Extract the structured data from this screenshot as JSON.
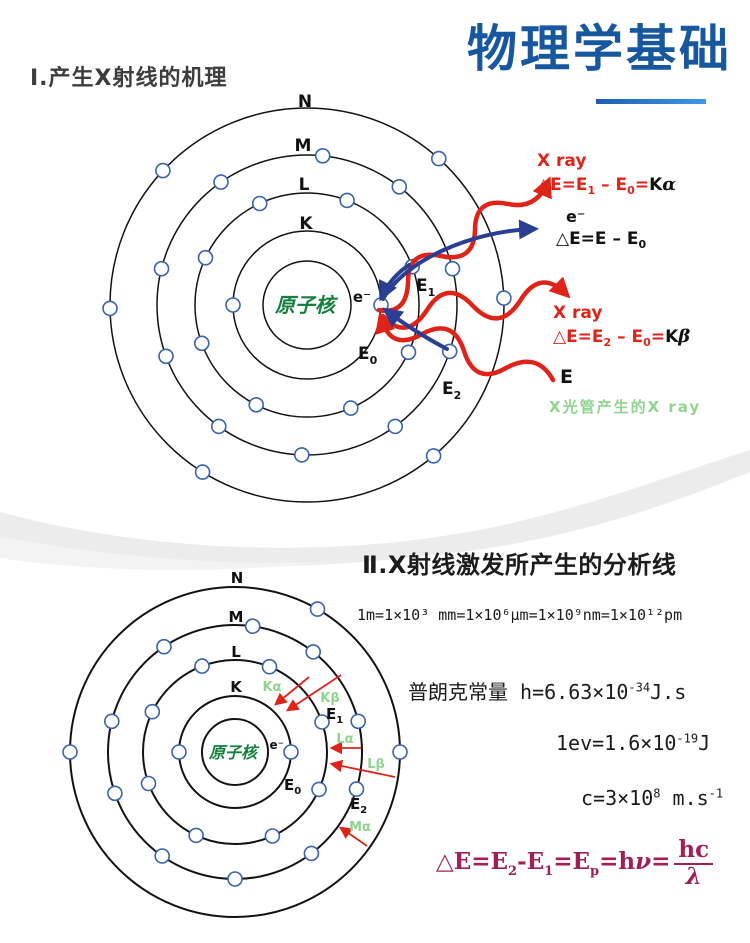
{
  "header": {
    "title": "物理学基础"
  },
  "colors": {
    "title_blue": "#17579f",
    "underline_blue": "#3f97e8",
    "xray_red": "#e02318",
    "electron_arrow_navy": "#2a3f93",
    "electron_ring_blue": "#3a62ad",
    "nucleus_green": "#15803d",
    "light_green": "#8fd48f",
    "formula_magenta": "#a11e56",
    "swoosh_gray": "#ececec"
  },
  "section1": {
    "heading": "Ⅰ.产生X射线的机理",
    "diagram": {
      "shells": [
        "N",
        "M",
        "L",
        "K"
      ],
      "nucleus": "原子核",
      "electron": "e⁻",
      "energy": {
        "e0": {
          "t": "E",
          "s": "0"
        },
        "e1": {
          "t": "E",
          "s": "1"
        },
        "e2": {
          "t": "E",
          "s": "2"
        }
      }
    },
    "annotations": {
      "a1": {
        "label": "X ray",
        "p1": "△E=E",
        "s1": "1",
        "p2": " – E",
        "s2": "0",
        "p3": "=",
        "k": "K",
        "g": "α"
      },
      "ae": {
        "label": "e⁻",
        "p1": "△E=E – E",
        "s1": "0"
      },
      "a2": {
        "label": "X ray",
        "p1": "△E=E",
        "s1": "2",
        "p2": " – E",
        "s2": "0",
        "p3": "=",
        "k": "K",
        "g": "β"
      },
      "incoming": {
        "label": "E",
        "caption": "X光管产生的X ray"
      }
    }
  },
  "section2": {
    "heading": "Ⅱ.X射线激发所产生的分析线",
    "diagram": {
      "shells": [
        "N",
        "M",
        "L",
        "K"
      ],
      "nucleus": "原子核",
      "electron": "e⁻",
      "energy": {
        "e0": {
          "t": "E",
          "s": "0"
        },
        "e1": {
          "t": "E",
          "s": "1"
        },
        "e2": {
          "t": "E",
          "s": "2"
        }
      },
      "transitions": [
        "Kα",
        "Kβ",
        "Lα",
        "Lβ",
        "Mα"
      ]
    },
    "facts": {
      "units": "1m=1×10³ mm=1×10⁶μm=1×10⁹nm=1×10¹²pm",
      "planck": {
        "pre": "普朗克常量 h=6.63×10",
        "sup": "-34",
        "post": "J.s"
      },
      "ev": {
        "pre": "1ev=1.6×10",
        "sup": "-19",
        "post": "J"
      },
      "c": {
        "pre": "c=3×10",
        "sup": "8",
        "mid": " m.s",
        "sup2": "-1"
      }
    },
    "formula": {
      "f1": "△E=E",
      "f1s": "2",
      "f2": "-E",
      "f2s": "1",
      "f3": "=E",
      "f3s": "p",
      "f4": "=h",
      "f4g": "ν",
      "f5": "=",
      "num": "hc",
      "den": "λ"
    }
  }
}
